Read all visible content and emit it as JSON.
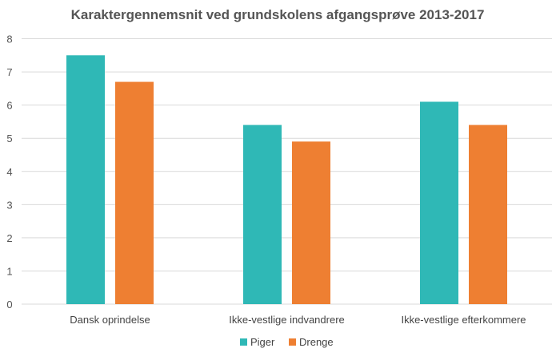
{
  "chart_data": {
    "type": "bar",
    "title": "Karaktergennemsnit ved grundskolens afgangsprøve 2013-2017",
    "categories": [
      "Dansk oprindelse",
      "Ikke-vestlige indvandrere",
      "Ikke-vestlige efterkommere"
    ],
    "series": [
      {
        "name": "Piger",
        "values": [
          7.5,
          5.4,
          6.1
        ],
        "color": "#2fb8b6"
      },
      {
        "name": "Drenge",
        "values": [
          6.7,
          4.9,
          5.4
        ],
        "color": "#ee7f32"
      }
    ],
    "xlabel": "",
    "ylabel": "",
    "ylim": [
      0,
      8
    ],
    "yticks": [
      "0",
      "1",
      "2",
      "3",
      "4",
      "5",
      "6",
      "7",
      "8"
    ],
    "grid": true,
    "legend": "bottom"
  }
}
